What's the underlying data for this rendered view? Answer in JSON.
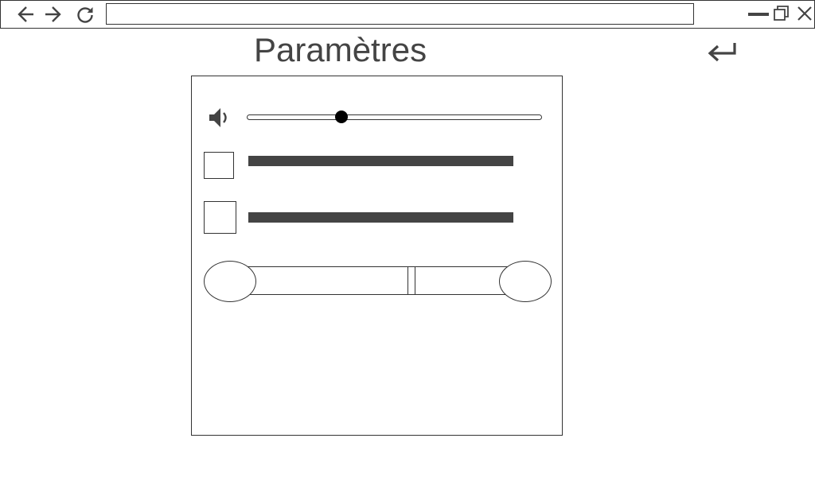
{
  "browser": {
    "url_value": "",
    "nav": [
      "back-arrow-icon",
      "forward-arrow-icon",
      "reload-icon"
    ],
    "window_controls": [
      "minimize-icon",
      "restore-icon",
      "close-icon"
    ]
  },
  "page": {
    "title": "Paramètres",
    "return_icon": "return-arrow-icon"
  },
  "settings": {
    "volume": {
      "icon": "speaker-icon",
      "level_percent": 32
    },
    "options": [
      {
        "checked": false
      },
      {
        "checked": false
      }
    ],
    "toggle": {
      "icon": "two-state-toggle"
    }
  },
  "colors": {
    "stroke": "#333333",
    "text": "#444444",
    "thumb": "#000000"
  }
}
